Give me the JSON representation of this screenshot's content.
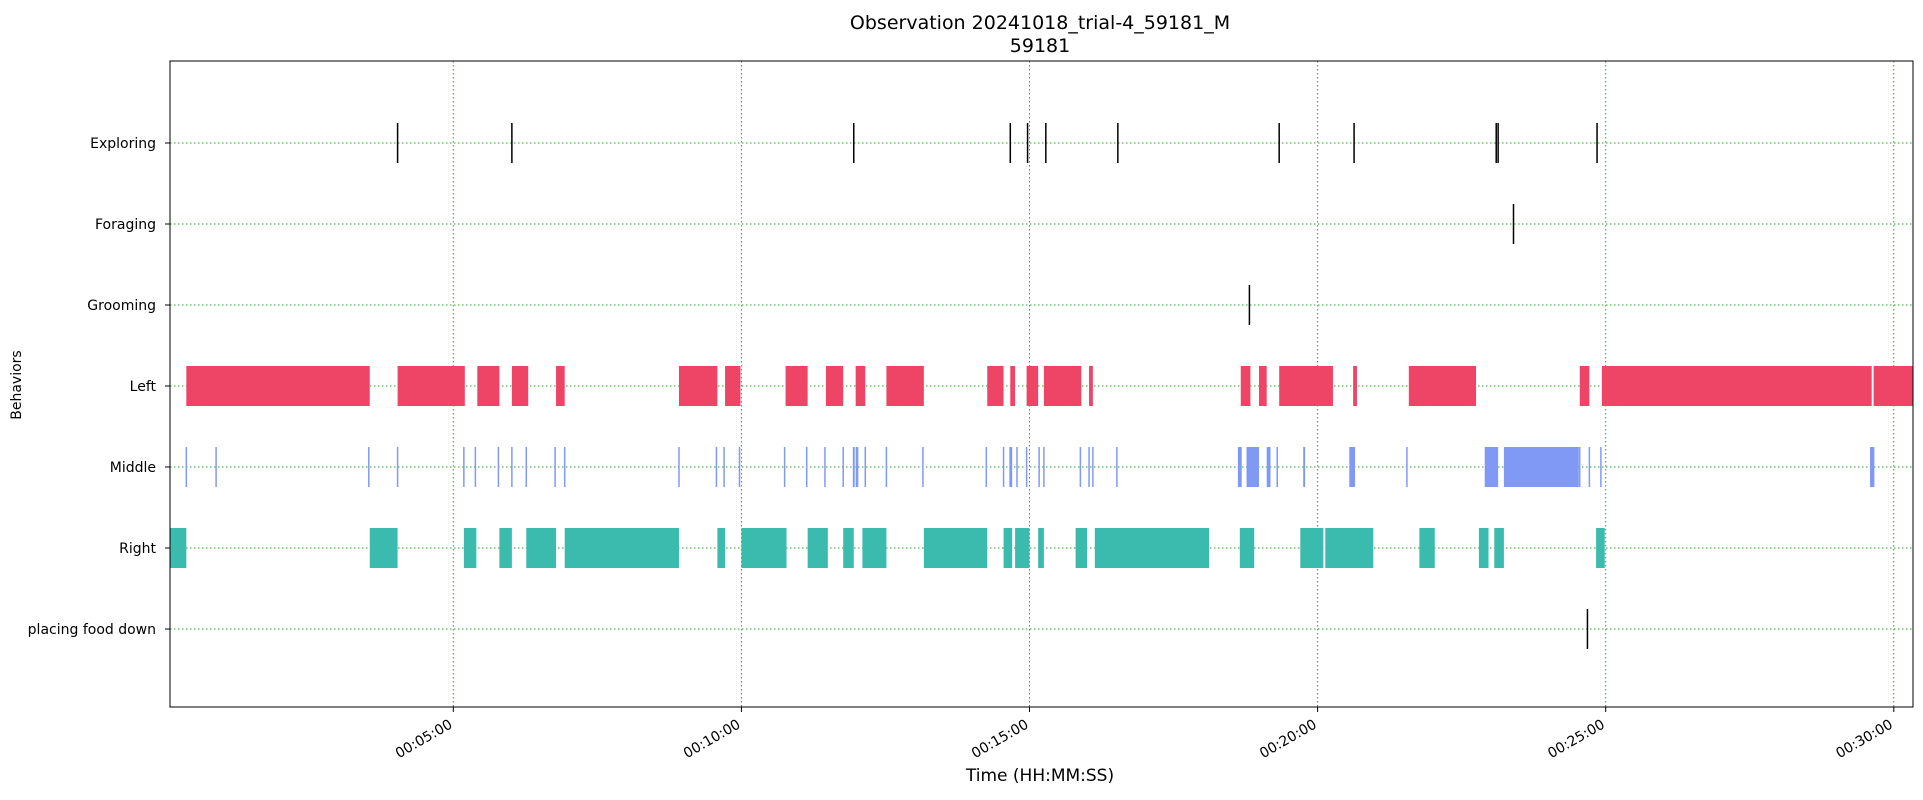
{
  "chart_data": {
    "type": "broken_barh",
    "title": "Observation 20241018_trial-4_59181_M",
    "subtitle": "59181",
    "xlabel": "Time (HH:MM:SS)",
    "ylabel": "Behaviors",
    "xlim": [
      0,
      1815
    ],
    "x_ticks": [
      {
        "value": 295,
        "label": "00:05:00"
      },
      {
        "value": 595,
        "label": "00:10:00"
      },
      {
        "value": 895,
        "label": "00:15:00"
      },
      {
        "value": 1195,
        "label": "00:20:00"
      },
      {
        "value": 1495,
        "label": "00:25:00"
      },
      {
        "value": 1795,
        "label": "00:30:00"
      }
    ],
    "grid": {
      "on": true,
      "style": "dotted",
      "color": "#2ca02c"
    },
    "categories": [
      "Exploring",
      "Foraging",
      "Grooming",
      "Left",
      "Middle",
      "Right",
      "placing food down"
    ],
    "series": [
      {
        "name": "Exploring",
        "color": "#000000",
        "events": [
          237,
          356,
          712,
          875,
          893,
          912,
          987,
          1155,
          1233,
          1381,
          1383,
          1486
        ]
      },
      {
        "name": "Foraging",
        "color": "#000000",
        "events": [
          1399
        ]
      },
      {
        "name": "Grooming",
        "color": "#000000",
        "events": [
          1124
        ]
      },
      {
        "name": "Left",
        "color": "#ee4466",
        "intervals": [
          [
            17,
            208
          ],
          [
            237,
            307
          ],
          [
            320,
            343
          ],
          [
            356,
            373
          ],
          [
            402,
            411
          ],
          [
            530,
            570
          ],
          [
            578,
            594
          ],
          [
            641,
            664
          ],
          [
            683,
            701
          ],
          [
            714,
            724
          ],
          [
            746,
            785
          ],
          [
            851,
            868
          ],
          [
            875,
            880
          ],
          [
            892,
            904
          ],
          [
            910,
            949
          ],
          [
            957,
            961
          ],
          [
            1115,
            1125
          ],
          [
            1134,
            1142
          ],
          [
            1155,
            1211
          ],
          [
            1232,
            1236
          ],
          [
            1290,
            1360
          ],
          [
            1468,
            1478
          ],
          [
            1491,
            1772
          ],
          [
            1774,
            1815
          ]
        ]
      },
      {
        "name": "Middle",
        "color": "#8099f4",
        "events": [
          17,
          48,
          207,
          237,
          306,
          318,
          342,
          356,
          371,
          401,
          411,
          530,
          569,
          577,
          593,
          640,
          663,
          682,
          701,
          712,
          716,
          724,
          746,
          784,
          850,
          868,
          876,
          882,
          892,
          905,
          910,
          948,
          957,
          961,
          986,
          1113,
          1153,
          1232,
          1288,
          1468,
          1478,
          1490,
          1771,
          1774
        ],
        "intervals": [
          [
            711,
            713
          ],
          [
            714,
            716
          ],
          [
            874,
            877
          ],
          [
            1112,
            1116
          ],
          [
            1121,
            1134
          ],
          [
            1142,
            1146
          ],
          [
            1180,
            1182
          ],
          [
            1228,
            1234
          ],
          [
            1369,
            1383
          ],
          [
            1389,
            1467
          ],
          [
            1771,
            1774
          ]
        ]
      },
      {
        "name": "Right",
        "color": "#3bbbad",
        "intervals": [
          [
            0,
            17
          ],
          [
            208,
            237
          ],
          [
            306,
            319
          ],
          [
            343,
            356
          ],
          [
            371,
            402
          ],
          [
            411,
            530
          ],
          [
            570,
            578
          ],
          [
            595,
            642
          ],
          [
            664,
            685
          ],
          [
            701,
            712
          ],
          [
            721,
            746
          ],
          [
            785,
            851
          ],
          [
            868,
            877
          ],
          [
            880,
            895
          ],
          [
            904,
            910
          ],
          [
            943,
            955
          ],
          [
            963,
            1082
          ],
          [
            1114,
            1129
          ],
          [
            1177,
            1201
          ],
          [
            1203,
            1253
          ],
          [
            1301,
            1317
          ],
          [
            1363,
            1373
          ],
          [
            1379,
            1389
          ],
          [
            1485,
            1494
          ]
        ]
      },
      {
        "name": "placing food down",
        "color": "#000000",
        "events": [
          1476
        ]
      }
    ]
  }
}
